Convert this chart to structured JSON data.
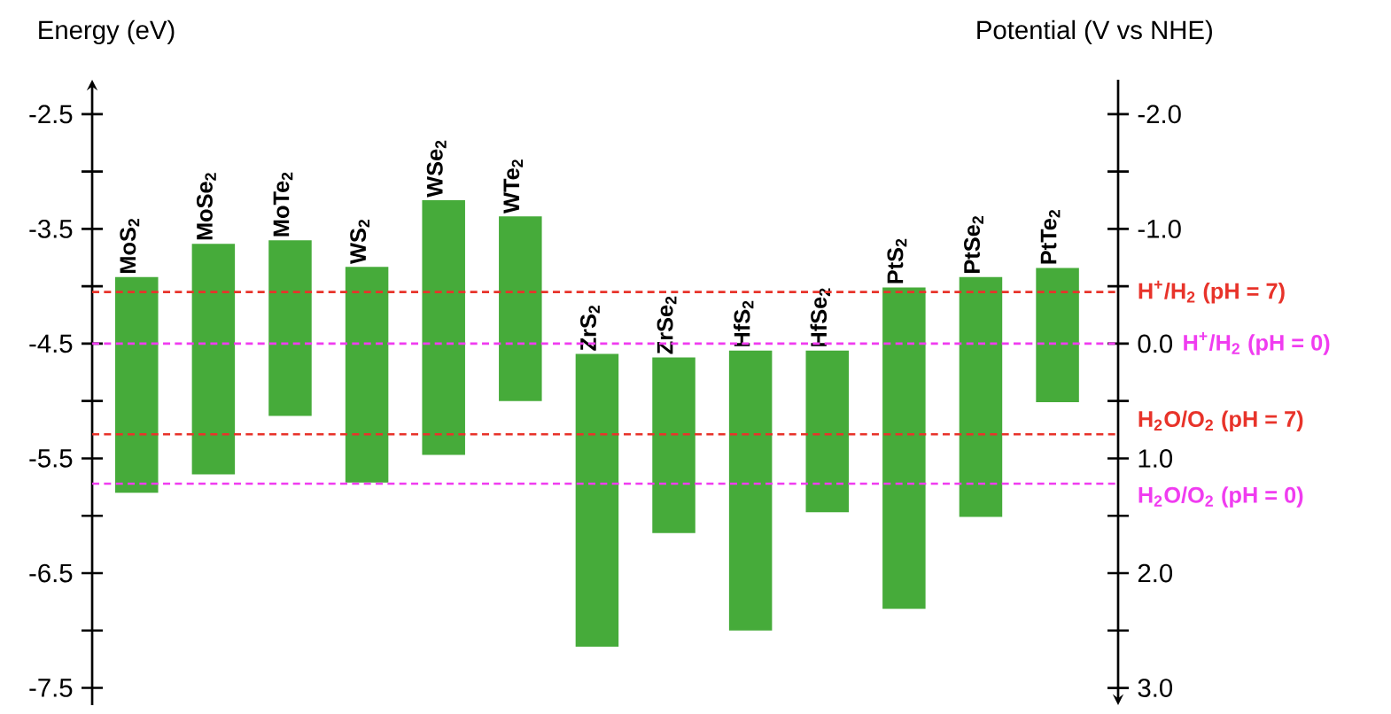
{
  "chart_data": {
    "type": "bar",
    "ylabel": "Energy (eV)",
    "y2label": "Potential (V vs NHE)",
    "categories": [
      "MoS$_{2}$",
      "MoSe$_{2}$",
      "MoTe$_{2}$",
      "WS$_{2}$",
      "WSe$_{2}$",
      "WTe$_{2}$",
      "ZrS$_{2}$",
      "ZrSe$_{2}$",
      "HfS$_{2}$",
      "HfSe$_{2}$",
      "PtS$_{2}$",
      "PtSe$_{2}$",
      "PtTe$_{2}$"
    ],
    "base": [
      -5.8,
      -5.64,
      -5.13,
      -5.71,
      -5.47,
      -5.0,
      -7.14,
      -6.15,
      -7.0,
      -5.97,
      -6.81,
      -6.01,
      -5.01
    ],
    "values": [
      1.88,
      2.01,
      1.53,
      1.88,
      2.22,
      1.61,
      2.55,
      1.53,
      2.44,
      1.41,
      2.8,
      2.09,
      1.17
    ],
    "color": "#46ab3a",
    "ylim": [
      -7.65,
      -2.2
    ],
    "yticks": [
      -7.5,
      {
        "value": -7.0,
        "label": null
      },
      -6.5,
      {
        "value": -6.0,
        "label": null
      },
      -5.5,
      {
        "value": -5.0,
        "label": null
      },
      -4.5,
      {
        "value": -4.0,
        "label": null
      },
      -3.5,
      {
        "value": -3.0,
        "label": null
      },
      -2.5
    ],
    "y2lim": [
      3.15,
      -2.3
    ],
    "y2ticks": [
      {
        "value": -2,
        "label": "-2.0"
      },
      {
        "value": -1.5,
        "label": null
      },
      {
        "value": -1,
        "label": "-1.0"
      },
      {
        "value": -0.5,
        "label": null
      },
      {
        "value": 0,
        "label": "0.0"
      },
      {
        "value": 0.5,
        "label": null
      },
      {
        "value": 1,
        "label": "1.0"
      },
      {
        "value": 1.5,
        "label": null
      },
      {
        "value": 2,
        "label": "2.0"
      },
      {
        "value": 2.5,
        "label": null
      },
      {
        "value": 3,
        "label": "3.0"
      }
    ],
    "ref_lines": [
      {
        "axis": "y2",
        "value": -0.45,
        "color": "#e8332a",
        "line_style": "dashed"
      },
      {
        "axis": "y2",
        "value": 0.0,
        "color": "#f03cf0",
        "line_style": "dashed"
      },
      {
        "axis": "y2",
        "value": 0.79,
        "color": "#e8332a",
        "line_style": "dashed"
      },
      {
        "axis": "y2",
        "value": 1.22,
        "color": "#f03cf0",
        "line_style": "dashed"
      }
    ],
    "annotations": [
      "H$^{+}$/H$_{2}$ (pH = 7)",
      "H$^{+}$/H$_{2}$ (pH = 0)",
      "H$_{2}$O/O$_{2}$ (pH = 7)",
      "H$_{2}$O/O$_{2}$ (pH = 0)"
    ]
  }
}
